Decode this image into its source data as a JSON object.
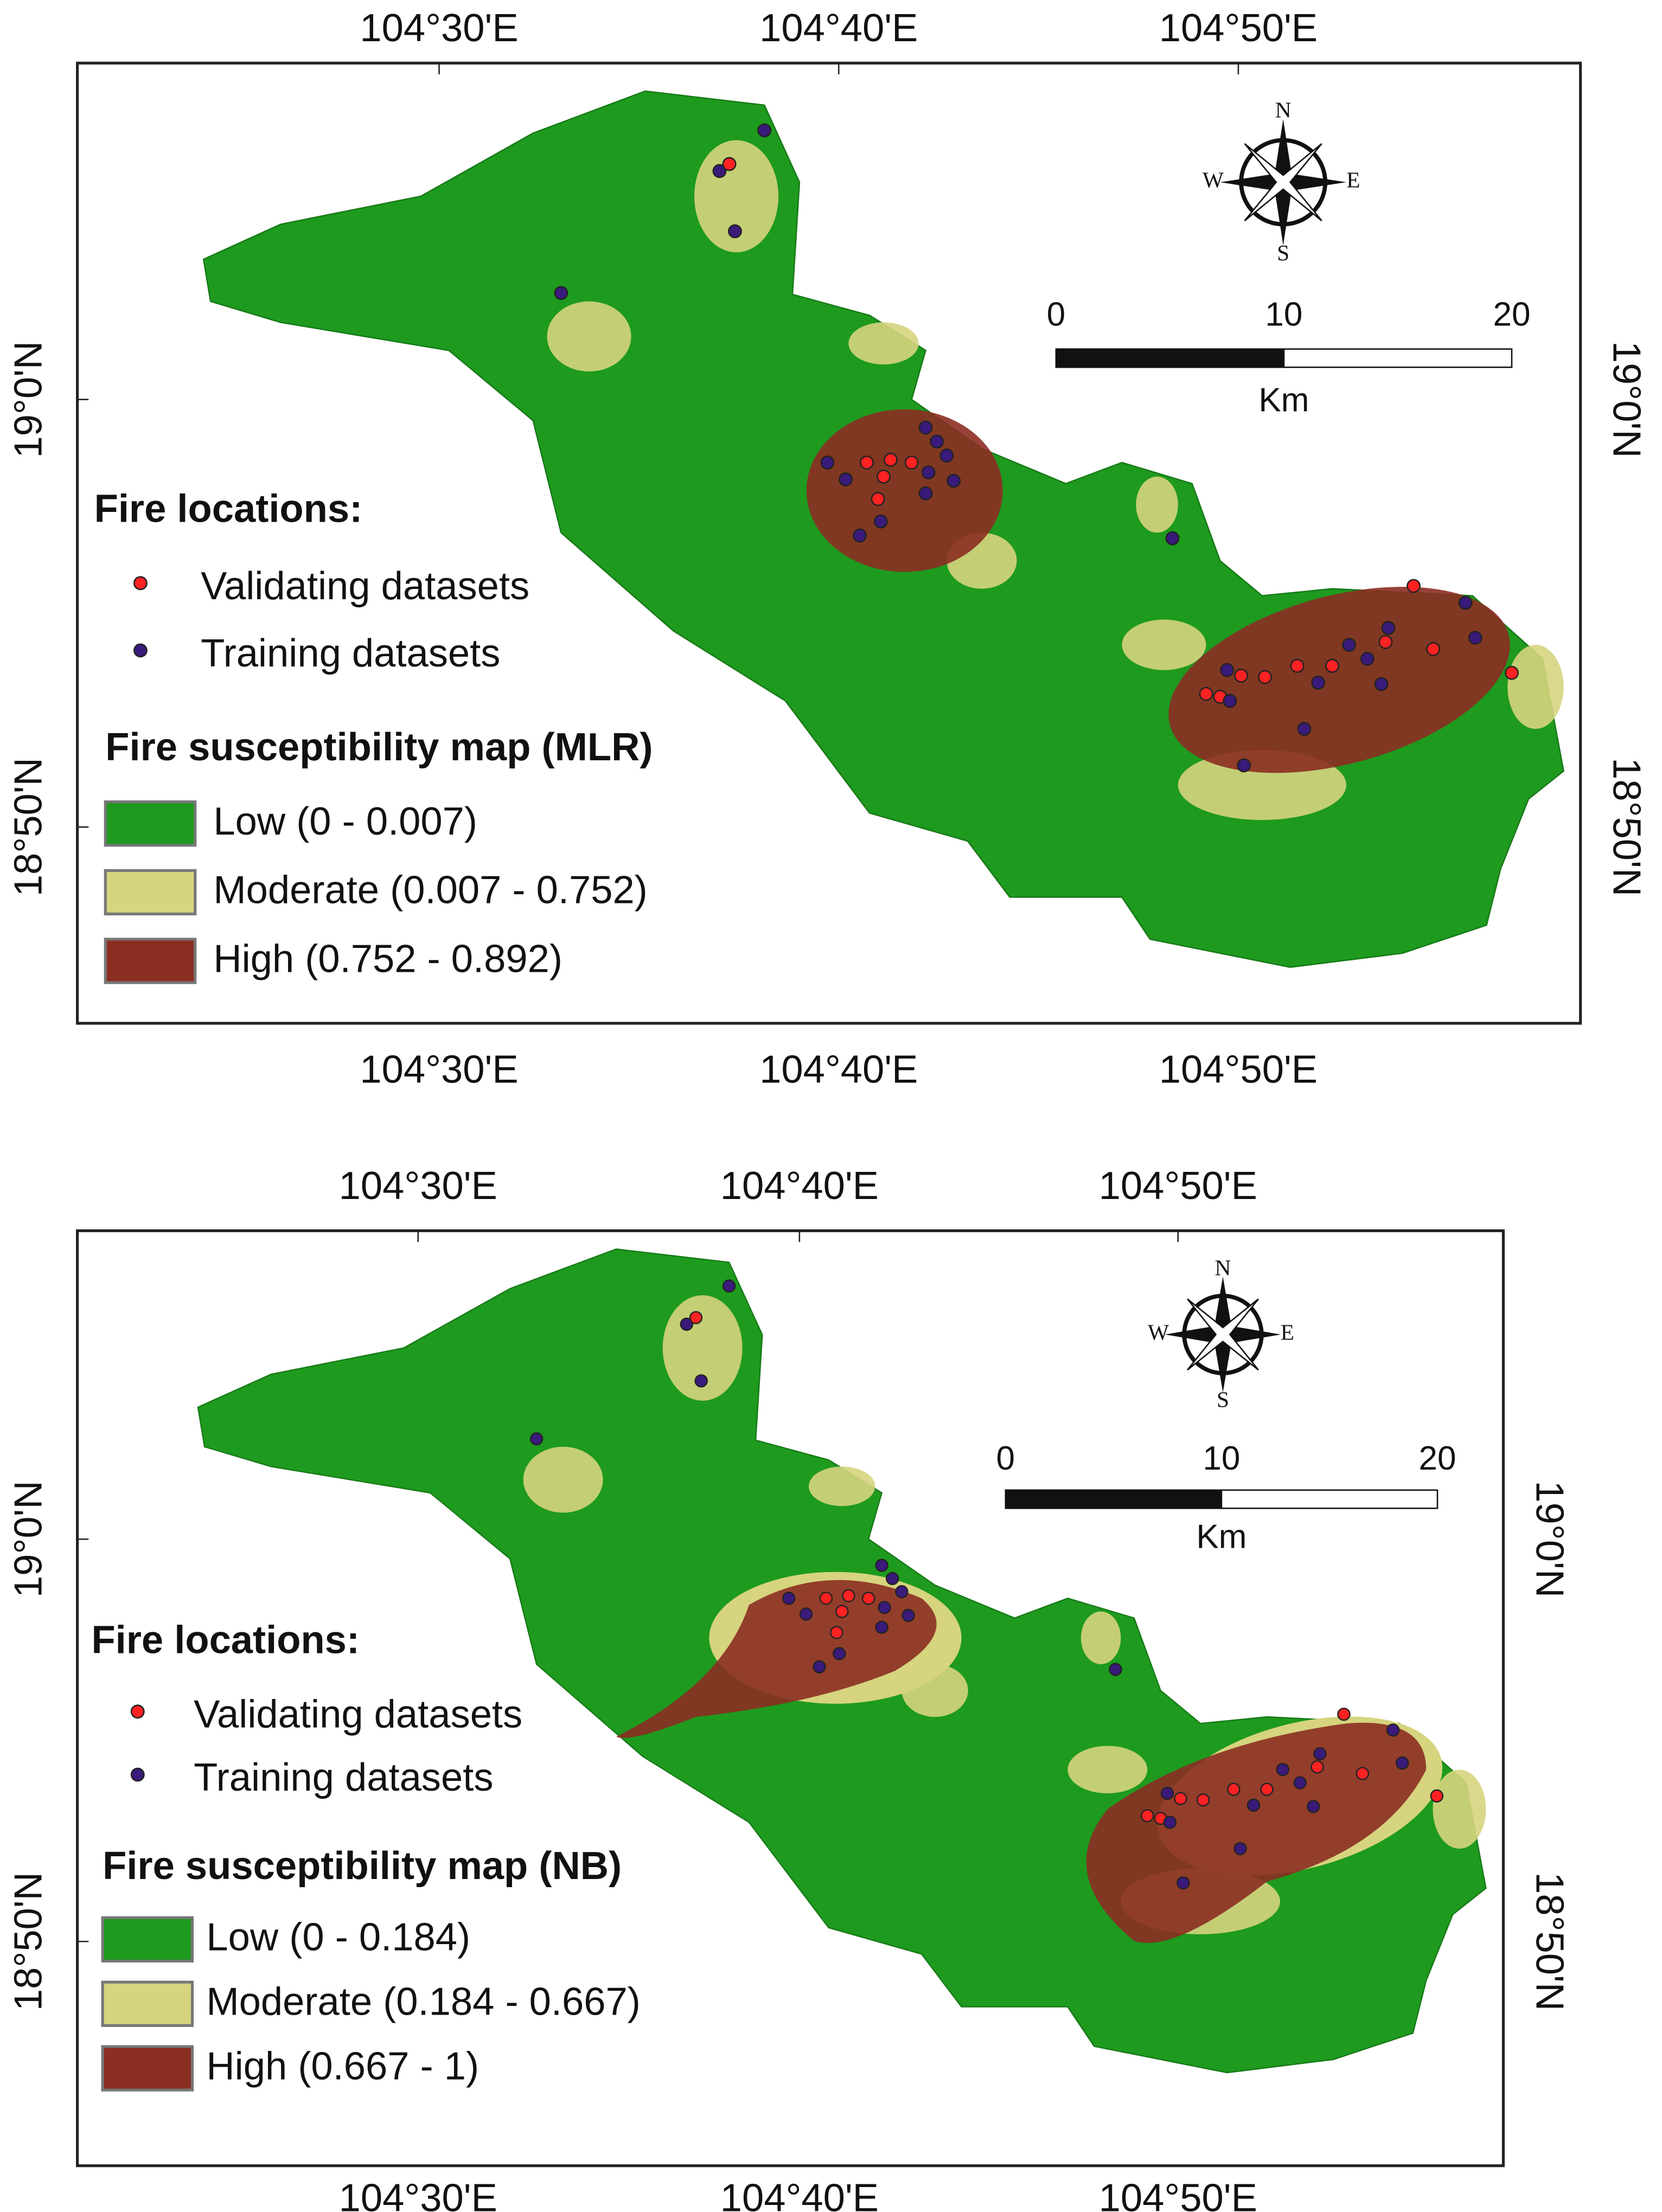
{
  "maps": [
    {
      "lon_labels": [
        "104°30'E",
        "104°40'E",
        "104°50'E"
      ],
      "lat_labels": [
        "19°0'N",
        "18°50'N"
      ],
      "compass": {
        "n": "N",
        "e": "E",
        "s": "S",
        "w": "W"
      },
      "scale_bar": {
        "ticks": [
          "0",
          "10",
          "20"
        ],
        "unit": "Km"
      },
      "fire_legend": {
        "title": "Fire locations:",
        "items": [
          "Validating datasets",
          "Training datasets"
        ]
      },
      "susceptibility_legend": {
        "title": "Fire susceptibility map (MLR)",
        "items": [
          "Low (0 - 0.007)",
          "Moderate (0.007 - 0.752)",
          "High (0.752 - 0.892)"
        ]
      }
    },
    {
      "lon_labels": [
        "104°30'E",
        "104°40'E",
        "104°50'E"
      ],
      "lat_labels": [
        "19°0'N",
        "18°50'N"
      ],
      "compass": {
        "n": "N",
        "e": "E",
        "s": "S",
        "w": "W"
      },
      "scale_bar": {
        "ticks": [
          "0",
          "10",
          "20"
        ],
        "unit": "Km"
      },
      "fire_legend": {
        "title": "Fire locations:",
        "items": [
          "Validating datasets",
          "Training datasets"
        ]
      },
      "susceptibility_legend": {
        "title": "Fire susceptibility map (NB)",
        "items": [
          "Low (0 - 0.184)",
          "Moderate (0.184 - 0.667)",
          "High (0.667 - 1)"
        ]
      }
    }
  ]
}
